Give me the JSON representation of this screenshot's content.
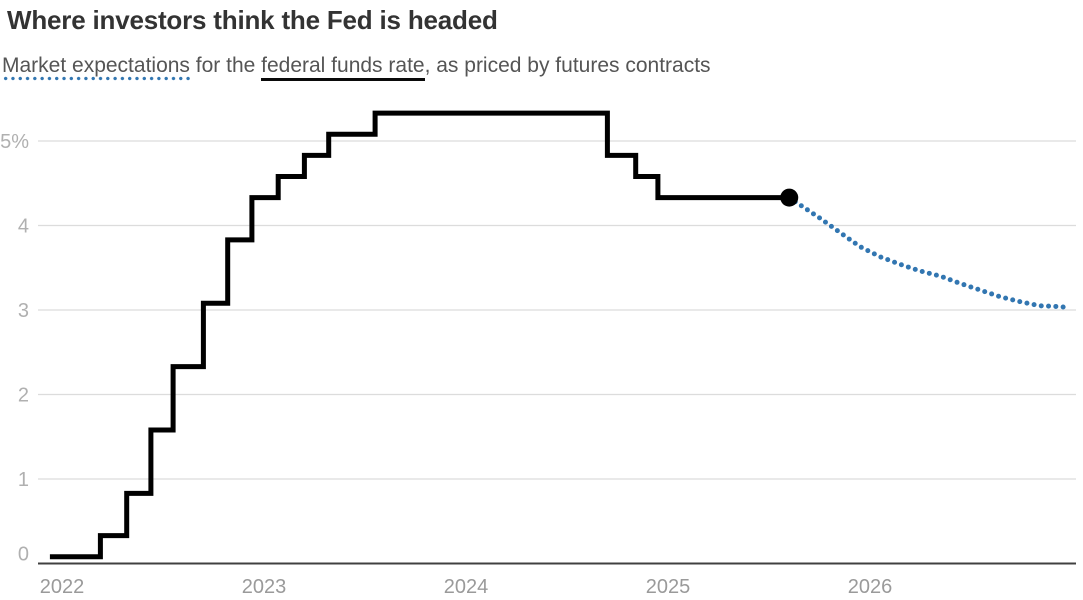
{
  "header": {
    "title": "Where investors think the Fed is headed",
    "subtitle": {
      "market_expectations": "Market expectations",
      "mid": " for the ",
      "federal_funds_rate": "federal funds rate",
      "tail": ", as priced by futures contracts"
    }
  },
  "colors": {
    "actual_line": "#000000",
    "expectation_dots": "#3276b1",
    "grid": "#dcdcdc",
    "axis": "#404040",
    "title_text": "#333333",
    "subtitle_text": "#555555",
    "y_tick_text": "#b0b0b0",
    "x_tick_text": "#9a9a9a"
  },
  "chart_data": {
    "type": "line",
    "title": "Where investors think the Fed is headed",
    "subtitle": "Market expectations for the federal funds rate, as priced by futures contracts",
    "xlabel": "",
    "ylabel": "",
    "grid": true,
    "legend_position": "none",
    "xlim": [
      2021.95,
      2027.05
    ],
    "ylim": [
      0,
      5.55
    ],
    "y_ticks": [
      0,
      1,
      2,
      3,
      4,
      5
    ],
    "y_tick_labels": [
      "0",
      "1",
      "2",
      "3",
      "4",
      "5%"
    ],
    "x_ticks": [
      2022,
      2023,
      2024,
      2025,
      2026
    ],
    "x_tick_labels": [
      "2022",
      "2023",
      "2024",
      "2025",
      "2026"
    ],
    "series": [
      {
        "name": "federal funds rate",
        "style": "step-after",
        "color": "#000000",
        "points": [
          [
            2021.96,
            0.08
          ],
          [
            2022.21,
            0.33
          ],
          [
            2022.34,
            0.83
          ],
          [
            2022.46,
            1.58
          ],
          [
            2022.57,
            2.33
          ],
          [
            2022.72,
            3.08
          ],
          [
            2022.84,
            3.83
          ],
          [
            2022.96,
            4.33
          ],
          [
            2023.09,
            4.58
          ],
          [
            2023.22,
            4.83
          ],
          [
            2023.34,
            5.08
          ],
          [
            2023.57,
            5.33
          ],
          [
            2024.72,
            4.83
          ],
          [
            2024.86,
            4.58
          ],
          [
            2024.97,
            4.33
          ],
          [
            2025.62,
            4.33
          ]
        ]
      },
      {
        "name": "market expectations",
        "style": "dotted",
        "color": "#3276b1",
        "points": [
          [
            2025.62,
            4.33
          ],
          [
            2025.67,
            4.25
          ],
          [
            2025.77,
            4.09
          ],
          [
            2025.87,
            3.92
          ],
          [
            2025.97,
            3.75
          ],
          [
            2026.07,
            3.63
          ],
          [
            2026.17,
            3.54
          ],
          [
            2026.27,
            3.46
          ],
          [
            2026.37,
            3.4
          ],
          [
            2026.46,
            3.32
          ],
          [
            2026.56,
            3.24
          ],
          [
            2026.66,
            3.16
          ],
          [
            2026.76,
            3.1
          ],
          [
            2026.86,
            3.05
          ],
          [
            2026.96,
            3.04
          ],
          [
            2027.0,
            3.03
          ]
        ]
      }
    ],
    "end_marker": {
      "x": 2025.62,
      "y": 4.33,
      "color": "#000000"
    }
  }
}
